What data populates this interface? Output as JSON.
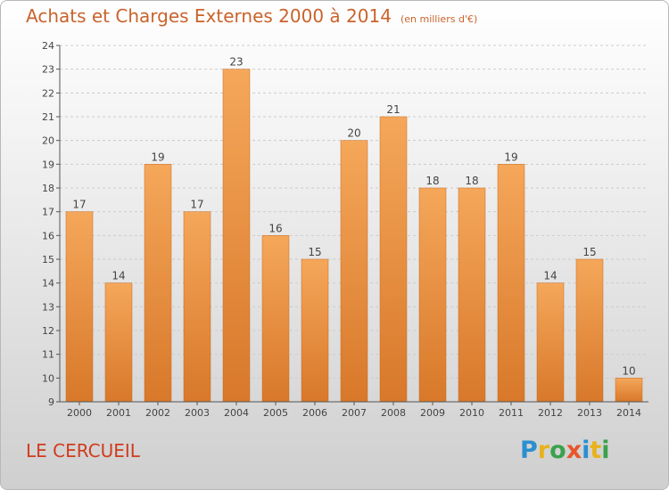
{
  "header": {
    "title": "Achats et Charges Externes 2000 à 2014",
    "unit": "(en milliers d'€)"
  },
  "footer": {
    "place": "LE CERCUEIL",
    "logo_letters": [
      "P",
      "r",
      "o",
      "x",
      "i",
      "t",
      "i"
    ],
    "logo_colors": [
      "#2a8fd0",
      "#e8b21b",
      "#3aa24c",
      "#e8552b",
      "#2a8fd0",
      "#e8b21b",
      "#3aa24c"
    ]
  },
  "colors": {
    "bar_top": "#f5a75a",
    "bar_bottom": "#d8782a",
    "axis": "#555555",
    "grid": "#cccccc",
    "title": "#c9632c",
    "place": "#d03c1e"
  },
  "chart_data": {
    "type": "bar",
    "title": "Achats et Charges Externes 2000 à 2014",
    "subtitle": "(en milliers d'€)",
    "xlabel": "",
    "ylabel": "",
    "categories": [
      "2000",
      "2001",
      "2002",
      "2003",
      "2004",
      "2005",
      "2006",
      "2007",
      "2008",
      "2009",
      "2010",
      "2011",
      "2012",
      "2013",
      "2014"
    ],
    "values": [
      17,
      14,
      19,
      17,
      23,
      16,
      15,
      20,
      21,
      18,
      18,
      19,
      14,
      15,
      10
    ],
    "ylim": [
      9,
      24
    ],
    "yticks": [
      9,
      10,
      11,
      12,
      13,
      14,
      15,
      16,
      17,
      18,
      19,
      20,
      21,
      22,
      23,
      24
    ],
    "grid": "horizontal dashed",
    "legend": "none",
    "data_labels": true
  }
}
